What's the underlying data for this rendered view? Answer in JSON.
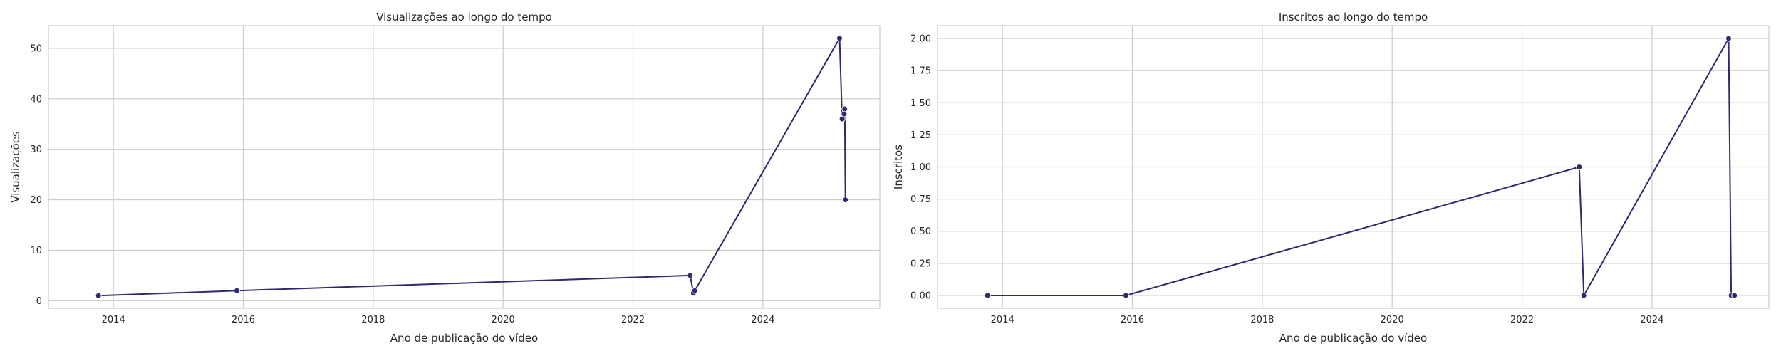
{
  "chart_data": [
    {
      "type": "line",
      "title": "Visualizações ao longo do tempo",
      "xlabel": "Ano de publicação do vídeo",
      "ylabel": "Visualizações",
      "xlim": [
        2013.0,
        2025.8
      ],
      "ylim": [
        -1.5,
        54.5
      ],
      "xticks": [
        2014,
        2016,
        2018,
        2020,
        2022,
        2024
      ],
      "xtick_labels": [
        "2014",
        "2016",
        "2018",
        "2020",
        "2022",
        "2024"
      ],
      "yticks": [
        0,
        10,
        20,
        30,
        40,
        50
      ],
      "ytick_labels": [
        "0",
        "10",
        "20",
        "30",
        "40",
        "50"
      ],
      "grid": true,
      "line_color": "#2e2a6e",
      "series": [
        {
          "x": [
            2013.77,
            2015.9,
            2022.88,
            2022.93,
            2022.95,
            2025.18,
            2025.22,
            2025.25,
            2025.26,
            2025.27
          ],
          "y": [
            1,
            2,
            5,
            1.5,
            2,
            52,
            36,
            37,
            38,
            20
          ]
        }
      ]
    },
    {
      "type": "line",
      "title": "Inscritos ao longo do tempo",
      "xlabel": "Ano de publicação do vídeo",
      "ylabel": "Inscritos",
      "xlim": [
        2013.0,
        2025.8
      ],
      "ylim": [
        -0.1,
        2.1
      ],
      "xticks": [
        2014,
        2016,
        2018,
        2020,
        2022,
        2024
      ],
      "xtick_labels": [
        "2014",
        "2016",
        "2018",
        "2020",
        "2022",
        "2024"
      ],
      "yticks": [
        0,
        0.25,
        0.5,
        0.75,
        1.0,
        1.25,
        1.5,
        1.75,
        2.0
      ],
      "ytick_labels": [
        "0.00",
        "0.25",
        "0.50",
        "0.75",
        "1.00",
        "1.25",
        "1.50",
        "1.75",
        "2.00"
      ],
      "grid": true,
      "line_color": "#2e2a6e",
      "series": [
        {
          "x": [
            2013.77,
            2015.9,
            2022.88,
            2022.95,
            2025.18,
            2025.22,
            2025.27
          ],
          "y": [
            0,
            0,
            1,
            0,
            2,
            0,
            0
          ]
        }
      ]
    }
  ]
}
